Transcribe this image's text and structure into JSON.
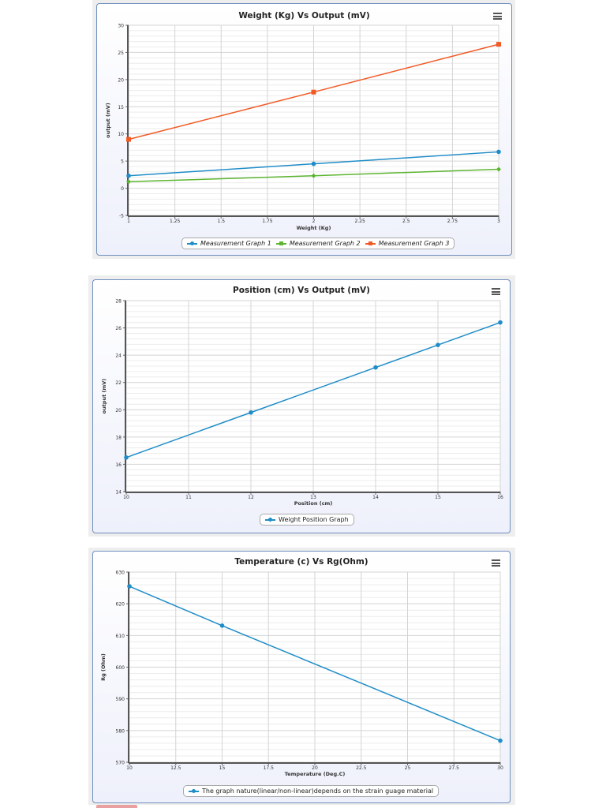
{
  "charts": [
    {
      "title": "Weight (Kg) Vs Output (mV)",
      "menu_icon": "hamburger-menu-icon",
      "xlabel": "Weight (Kg)",
      "ylabel": "output (mV)",
      "legend": [
        "Measurement Graph 1",
        "Measurement Graph 2",
        "Measurement Graph 3"
      ]
    },
    {
      "title": "Position (cm) Vs Output (mV)",
      "menu_icon": "hamburger-menu-icon",
      "xlabel": "Position (cm)",
      "ylabel": "output (mV)",
      "legend": [
        "Weight Position Graph"
      ]
    },
    {
      "title": "Temperature (c) Vs Rg(Ohm)",
      "menu_icon": "hamburger-menu-icon",
      "xlabel": "Temperature (Deg.C)",
      "ylabel": "Rg (Ohm)",
      "legend": [
        "The graph nature(linear/non-linear)depends on the strain guage material"
      ]
    }
  ],
  "chart_data": [
    {
      "type": "line",
      "title": "Weight (Kg) Vs Output (mV)",
      "xlabel": "Weight (Kg)",
      "ylabel": "output (mV)",
      "x": [
        1,
        2,
        3
      ],
      "xticks": [
        "1",
        "1.25",
        "1.5",
        "1.75",
        "2",
        "2.25",
        "2.5",
        "2.75",
        "3"
      ],
      "yticks": [
        "-5",
        "0",
        "5",
        "10",
        "15",
        "20",
        "25",
        "30"
      ],
      "xlim": [
        1,
        3
      ],
      "ylim": [
        -5,
        30
      ],
      "grid": true,
      "legend_position": "bottom",
      "series": [
        {
          "name": "Measurement Graph 1",
          "color": "#1f8dc8",
          "marker": "circle",
          "values": [
            2.3,
            4.5,
            6.7
          ]
        },
        {
          "name": "Measurement Graph 2",
          "color": "#5cb531",
          "marker": "diamond",
          "values": [
            1.2,
            2.3,
            3.5
          ]
        },
        {
          "name": "Measurement Graph 3",
          "color": "#f15a24",
          "marker": "square",
          "values": [
            9.0,
            17.7,
            26.5
          ]
        }
      ]
    },
    {
      "type": "line",
      "title": "Position (cm) Vs Output (mV)",
      "xlabel": "Position (cm)",
      "ylabel": "output (mV)",
      "x": [
        10,
        12,
        14,
        15,
        16
      ],
      "xticks": [
        "10",
        "11",
        "12",
        "13",
        "14",
        "15",
        "16"
      ],
      "yticks": [
        "14",
        "16",
        "18",
        "20",
        "22",
        "24",
        "26",
        "28"
      ],
      "xlim": [
        10,
        16
      ],
      "ylim": [
        14,
        28
      ],
      "grid": true,
      "legend_position": "bottom",
      "series": [
        {
          "name": "Weight Position Graph",
          "color": "#1f8dc8",
          "marker": "circle",
          "values": [
            16.5,
            19.8,
            23.1,
            24.75,
            26.4
          ]
        }
      ]
    },
    {
      "type": "line",
      "title": "Temperature (c) Vs Rg(Ohm)",
      "xlabel": "Temperature (Deg.C)",
      "ylabel": "Rg (Ohm)",
      "x": [
        10,
        15,
        30
      ],
      "xticks": [
        "10",
        "12.5",
        "15",
        "17.5",
        "20",
        "22.5",
        "25",
        "27.5",
        "30"
      ],
      "yticks": [
        "570",
        "580",
        "590",
        "600",
        "610",
        "620",
        "630"
      ],
      "xlim": [
        10,
        30
      ],
      "ylim": [
        570,
        630
      ],
      "grid": true,
      "legend_position": "bottom",
      "series": [
        {
          "name": "The graph nature(linear/non-linear)depends on the strain guage material",
          "color": "#1f8dc8",
          "marker": "circle",
          "values": [
            625.5,
            613.1,
            576.8
          ]
        }
      ]
    }
  ]
}
